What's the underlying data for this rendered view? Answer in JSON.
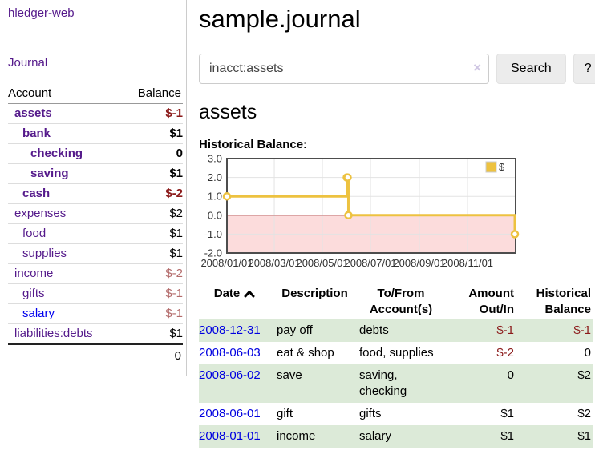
{
  "colors": {
    "link_purple": "#551A8B",
    "link_blue": "#0000EE",
    "negative_strong": "#8b1a1a",
    "negative_soft": "#b36a6a",
    "row_stripe_green": "#dcead8",
    "chart_series_yellow": "#edc240",
    "chart_negative_region": "#fcdcdc",
    "chart_zero_line": "#8b0000",
    "chart_grid": "#e3e3e3",
    "chart_border": "#4d4d4d"
  },
  "sidebar": {
    "brand": "hledger-web",
    "nav_journal": "Journal",
    "table": {
      "headers": {
        "account": "Account",
        "balance": "Balance"
      },
      "rows": [
        {
          "account": "assets",
          "indent": 1,
          "bold": true,
          "balance": "$-1",
          "balance_style": "neg-strong",
          "link": "purple"
        },
        {
          "account": "bank",
          "indent": 2,
          "bold": true,
          "balance": "$1",
          "balance_style": "pos-strong",
          "link": "purple"
        },
        {
          "account": "checking",
          "indent": 3,
          "bold": true,
          "balance": "0",
          "balance_style": "pos-strong",
          "link": "purple"
        },
        {
          "account": "saving",
          "indent": 3,
          "bold": true,
          "balance": "$1",
          "balance_style": "pos-strong",
          "link": "purple"
        },
        {
          "account": "cash",
          "indent": 2,
          "bold": true,
          "balance": "$-2",
          "balance_style": "neg-strong",
          "link": "purple"
        },
        {
          "account": "expenses",
          "indent": 1,
          "bold": false,
          "balance": "$2",
          "balance_style": "pos",
          "link": "purple"
        },
        {
          "account": "food",
          "indent": 2,
          "bold": false,
          "balance": "$1",
          "balance_style": "pos",
          "link": "purple"
        },
        {
          "account": "supplies",
          "indent": 2,
          "bold": false,
          "balance": "$1",
          "balance_style": "pos",
          "link": "purple"
        },
        {
          "account": "income",
          "indent": 1,
          "bold": false,
          "balance": "$-2",
          "balance_style": "neg-soft",
          "link": "purple"
        },
        {
          "account": "gifts",
          "indent": 2,
          "bold": false,
          "balance": "$-1",
          "balance_style": "neg-soft",
          "link": "purple"
        },
        {
          "account": "salary",
          "indent": 2,
          "bold": false,
          "balance": "$-1",
          "balance_style": "neg-soft",
          "link": "blue"
        },
        {
          "account": "liabilities:debts",
          "indent": 1,
          "bold": false,
          "balance": "$1",
          "balance_style": "pos",
          "link": "purple"
        }
      ],
      "total": "0"
    }
  },
  "header": {
    "title": "sample.journal"
  },
  "search": {
    "value": "inacct:assets",
    "clear_icon": "×",
    "button_label": "Search",
    "help_label": "?"
  },
  "account_page": {
    "heading": "assets",
    "chart_label": "Historical Balance:"
  },
  "chart_data": {
    "type": "line",
    "step": true,
    "title": "Historical Balance",
    "series": [
      {
        "name": "$",
        "color": "#edc240",
        "points": [
          [
            "2008-01-01",
            1
          ],
          [
            "2008-06-01",
            2
          ],
          [
            "2008-06-02",
            2
          ],
          [
            "2008-06-03",
            0
          ],
          [
            "2008-12-31",
            -1
          ]
        ]
      }
    ],
    "x_range": [
      "2008-01-01",
      "2009-01-01"
    ],
    "x_ticks": [
      "2008/01/01",
      "2008/03/01",
      "2008/05/01",
      "2008/07/01",
      "2008/09/01",
      "2008/11/01"
    ],
    "y_ticks": [
      -2.0,
      -1.0,
      0.0,
      1.0,
      2.0,
      3.0
    ],
    "ylim": [
      -2,
      3
    ],
    "grid": true,
    "legend": "$",
    "legend_position": "top-right",
    "negative_region_color": "#fcdcdc",
    "zero_line_color": "#8b0000"
  },
  "register": {
    "columns": [
      {
        "label": "Date",
        "align": "left",
        "sorted": "asc"
      },
      {
        "label": "Description",
        "align": "left"
      },
      {
        "label": "To/From\nAccount(s)",
        "align": "left"
      },
      {
        "label": "Amount\nOut/In",
        "align": "right"
      },
      {
        "label": "Historical\nBalance",
        "align": "right"
      }
    ],
    "rows": [
      {
        "date": "2008-12-31",
        "description": "pay off",
        "accounts": "debts",
        "amount": "$-1",
        "amount_neg": true,
        "balance": "$-1",
        "balance_neg": true
      },
      {
        "date": "2008-06-03",
        "description": "eat & shop",
        "accounts": "food, supplies",
        "amount": "$-2",
        "amount_neg": true,
        "balance": "0",
        "balance_neg": false
      },
      {
        "date": "2008-06-02",
        "description": "save",
        "accounts": "saving,\nchecking",
        "amount": "0",
        "amount_neg": false,
        "balance": "$2",
        "balance_neg": false
      },
      {
        "date": "2008-06-01",
        "description": "gift",
        "accounts": "gifts",
        "amount": "$1",
        "amount_neg": false,
        "balance": "$2",
        "balance_neg": false
      },
      {
        "date": "2008-01-01",
        "description": "income",
        "accounts": "salary",
        "amount": "$1",
        "amount_neg": false,
        "balance": "$1",
        "balance_neg": false
      }
    ]
  }
}
